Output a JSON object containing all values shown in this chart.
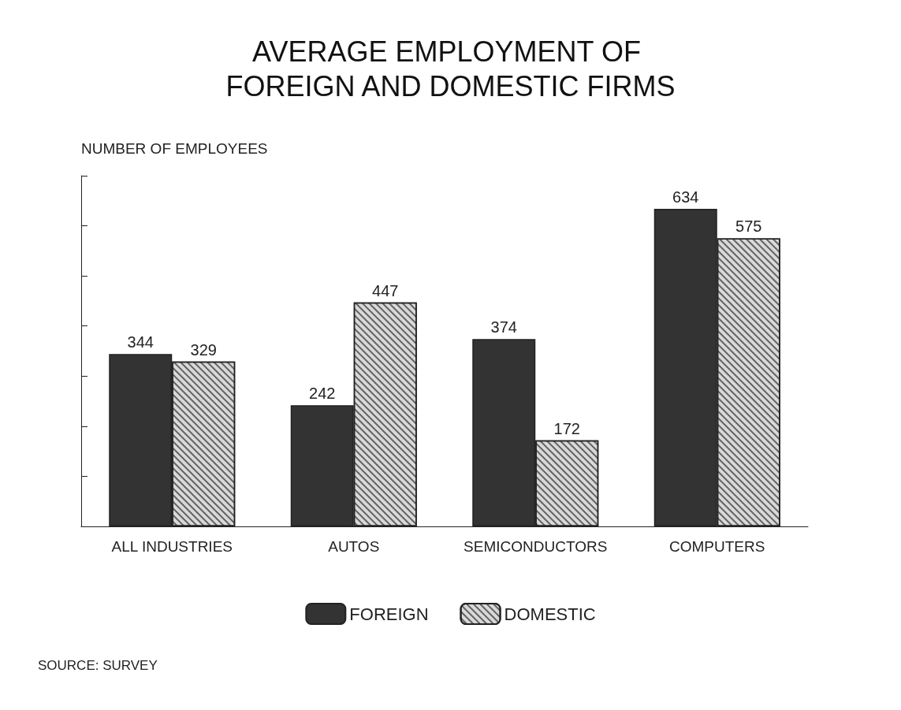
{
  "chart_data": {
    "type": "bar",
    "title": "AVERAGE EMPLOYMENT OF FOREIGN AND DOMESTIC FIRMS",
    "ylabel": "NUMBER OF EMPLOYEES",
    "categories": [
      "ALL INDUSTRIES",
      "AUTOS",
      "SEMICONDUCTORS",
      "COMPUTERS"
    ],
    "series": [
      {
        "name": "FOREIGN",
        "color": "#333333",
        "values": [
          344,
          242,
          374,
          634
        ]
      },
      {
        "name": "DOMESTIC",
        "color": "#d9d9d9",
        "values": [
          329,
          447,
          172,
          575
        ]
      }
    ],
    "data_labels": true,
    "grid": false,
    "legend": "bottom",
    "tick_labels": "x",
    "annotations": [
      "SOURCE: SURVEY"
    ]
  }
}
